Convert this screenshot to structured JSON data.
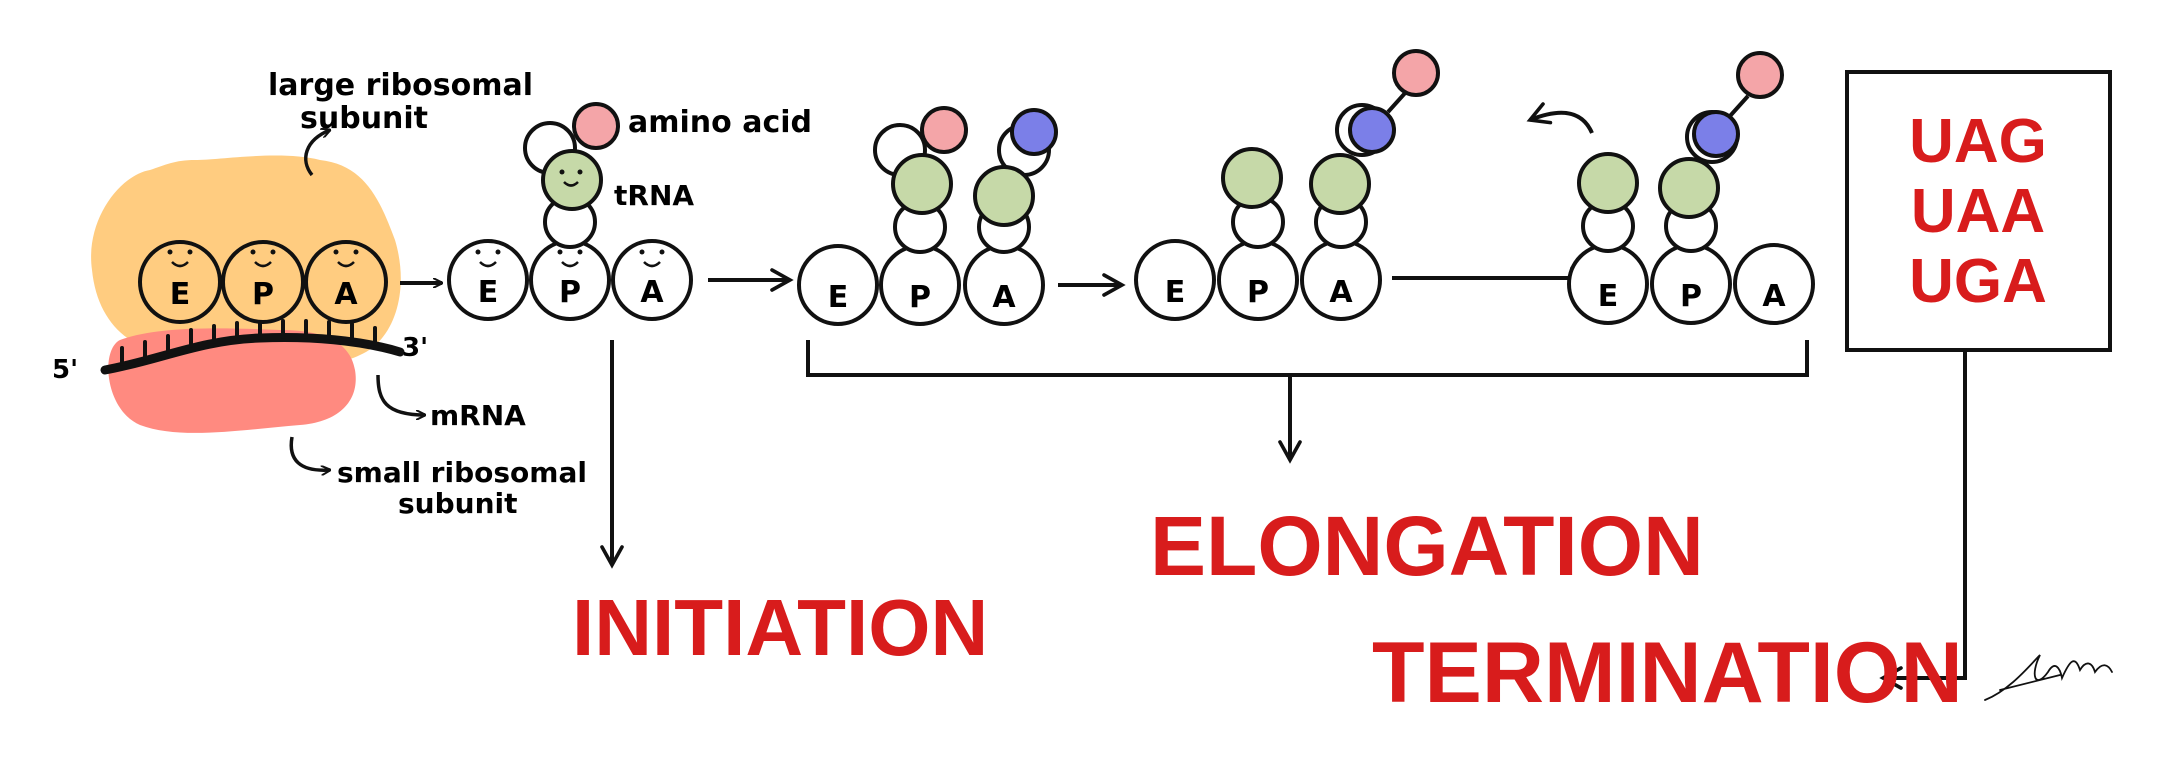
{
  "labels": {
    "large_subunit": [
      "large ribosomal",
      "subunit"
    ],
    "small_subunit": [
      "small ribosomal",
      "subunit"
    ],
    "amino_acid": "amino acid",
    "trna": "tRNA",
    "mrna": "mRNA",
    "five_prime": "5'",
    "three_prime": "3'"
  },
  "sites": [
    "E",
    "P",
    "A"
  ],
  "stages": {
    "initiation": "INITIATION",
    "elongation": "ELONGATION",
    "termination": "TERMINATION"
  },
  "stop_codons": [
    "UAG",
    "UAA",
    "UGA"
  ],
  "colors": {
    "large_subunit": "#FFCC80",
    "small_subunit": "#FF8A80",
    "amino_acid_pink": "#F4A5A8",
    "amino_acid_blue": "#7B7FE8",
    "trna_green": "#C6D9A8",
    "stage_red": "#D81C1C",
    "ink": "#111111"
  }
}
